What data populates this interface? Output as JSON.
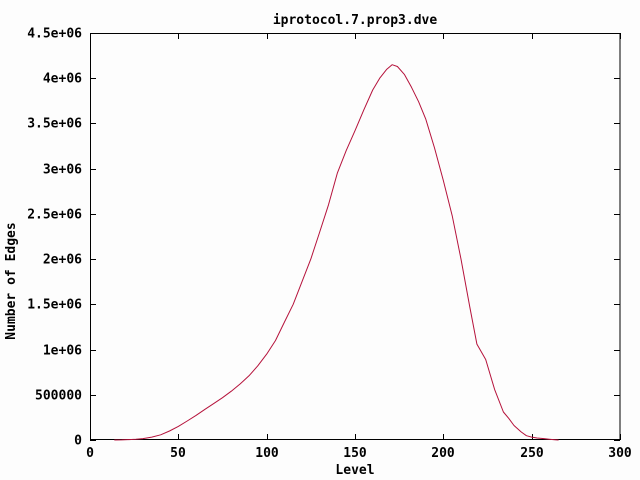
{
  "chart_data": {
    "type": "line",
    "title": "iprotocol.7.prop3.dve",
    "xlabel": "Level",
    "ylabel": "Number of Edges",
    "xlim": [
      0,
      300
    ],
    "ylim": [
      0,
      4500000
    ],
    "xticks": [
      0,
      50,
      100,
      150,
      200,
      250,
      300
    ],
    "xtick_labels": [
      "0",
      "50",
      "100",
      "150",
      "200",
      "250",
      "300"
    ],
    "yticks": [
      0,
      500000,
      1000000,
      1500000,
      2000000,
      2500000,
      3000000,
      3500000,
      4000000,
      4500000
    ],
    "ytick_labels": [
      "0",
      "500000",
      "1e+06",
      "1.5e+06",
      "2e+06",
      "2.5e+06",
      "3e+06",
      "3.5e+06",
      "4e+06",
      "4.5e+06"
    ],
    "grid": "off",
    "legend": "none",
    "colors": {
      "line": "#b5123b",
      "frame": "#000000",
      "background": "#fdfdfd",
      "text": "#000000"
    },
    "series": [
      {
        "name": "iprotocol.7.prop3.dve",
        "points": [
          [
            14,
            0
          ],
          [
            18,
            1000
          ],
          [
            22,
            4000
          ],
          [
            26,
            9000
          ],
          [
            30,
            16000
          ],
          [
            35,
            32000
          ],
          [
            40,
            58000
          ],
          [
            45,
            100000
          ],
          [
            50,
            150000
          ],
          [
            55,
            210000
          ],
          [
            60,
            272000
          ],
          [
            65,
            338000
          ],
          [
            70,
            402000
          ],
          [
            75,
            468000
          ],
          [
            80,
            540000
          ],
          [
            85,
            620000
          ],
          [
            90,
            710000
          ],
          [
            95,
            820000
          ],
          [
            100,
            950000
          ],
          [
            105,
            1100000
          ],
          [
            110,
            1300000
          ],
          [
            115,
            1500000
          ],
          [
            120,
            1750000
          ],
          [
            125,
            2000000
          ],
          [
            130,
            2300000
          ],
          [
            135,
            2600000
          ],
          [
            140,
            2950000
          ],
          [
            145,
            3200000
          ],
          [
            150,
            3420000
          ],
          [
            155,
            3650000
          ],
          [
            160,
            3870000
          ],
          [
            164,
            4000000
          ],
          [
            168,
            4100000
          ],
          [
            171,
            4150000
          ],
          [
            174,
            4130000
          ],
          [
            178,
            4040000
          ],
          [
            182,
            3900000
          ],
          [
            186,
            3740000
          ],
          [
            190,
            3550000
          ],
          [
            195,
            3230000
          ],
          [
            200,
            2870000
          ],
          [
            205,
            2480000
          ],
          [
            210,
            2000000
          ],
          [
            215,
            1470000
          ],
          [
            219,
            1060000
          ],
          [
            224,
            890000
          ],
          [
            229,
            560000
          ],
          [
            234,
            310000
          ],
          [
            237,
            240000
          ],
          [
            240,
            160000
          ],
          [
            244,
            90000
          ],
          [
            247,
            48000
          ],
          [
            250,
            32000
          ],
          [
            253,
            22000
          ],
          [
            257,
            15000
          ],
          [
            260,
            9000
          ],
          [
            263,
            3000
          ],
          [
            265,
            0
          ]
        ]
      }
    ]
  }
}
